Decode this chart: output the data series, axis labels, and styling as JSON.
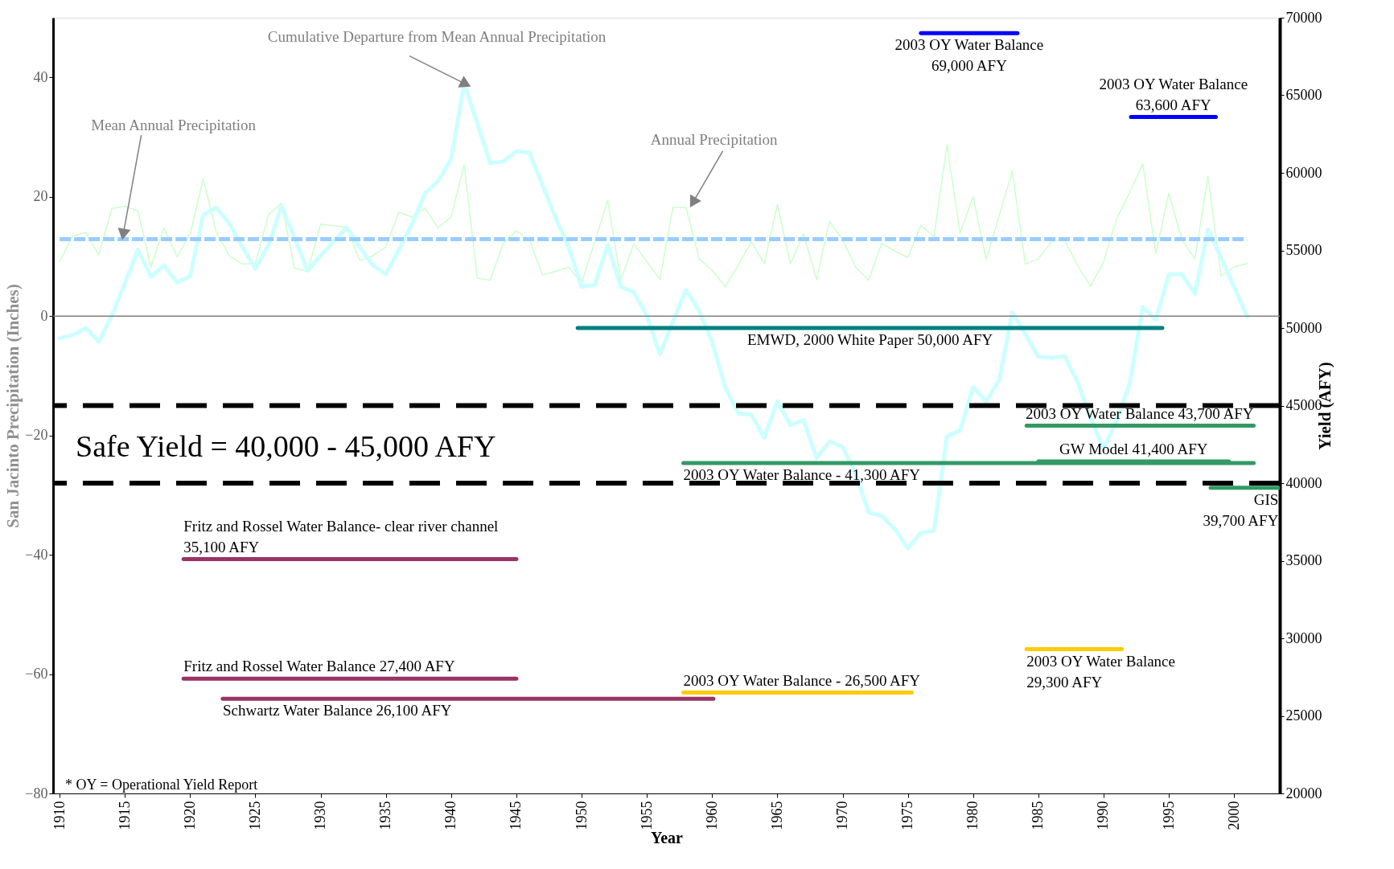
{
  "chart_data": {
    "type": "line",
    "xlabel": "Year",
    "ylabel": "San Jacinto Precipitation (Inches)",
    "y2label": "Yield (AFY)",
    "xlim": [
      1909.5,
      2003.5
    ],
    "xticks": [
      1910,
      1915,
      1920,
      1925,
      1930,
      1935,
      1940,
      1945,
      1950,
      1955,
      1960,
      1965,
      1970,
      1975,
      1980,
      1985,
      1990,
      1995,
      2000
    ],
    "ylim": [
      -80,
      50
    ],
    "yticks": [
      -80,
      -60,
      -40,
      -20,
      0,
      20,
      40
    ],
    "y2lim": [
      20000,
      70000
    ],
    "y2ticks": [
      20000,
      25000,
      30000,
      35000,
      40000,
      45000,
      50000,
      55000,
      60000,
      65000,
      70000
    ],
    "grid": false,
    "x": [
      1910,
      1911,
      1912,
      1913,
      1914,
      1915,
      1916,
      1917,
      1918,
      1919,
      1920,
      1921,
      1922,
      1923,
      1924,
      1925,
      1926,
      1927,
      1928,
      1929,
      1930,
      1931,
      1932,
      1933,
      1934,
      1935,
      1936,
      1937,
      1938,
      1939,
      1940,
      1941,
      1942,
      1943,
      1944,
      1945,
      1946,
      1947,
      1948,
      1949,
      1950,
      1951,
      1952,
      1953,
      1954,
      1955,
      1956,
      1957,
      1958,
      1959,
      1960,
      1961,
      1962,
      1963,
      1964,
      1965,
      1966,
      1967,
      1968,
      1969,
      1970,
      1971,
      1972,
      1973,
      1974,
      1975,
      1976,
      1977,
      1978,
      1979,
      1980,
      1981,
      1982,
      1983,
      1984,
      1985,
      1986,
      1987,
      1988,
      1989,
      1990,
      1991,
      1992,
      1993,
      1994,
      1995,
      1996,
      1997,
      1998,
      1999,
      2000,
      2001
    ],
    "series": [
      {
        "color": "#ccffcc",
        "values": [
          9.1,
          13.4,
          14.0,
          10.2,
          18.0,
          18.4,
          17.6,
          8.2,
          14.8,
          9.9,
          13.7,
          23.0,
          14.1,
          10.1,
          8.7,
          8.8,
          17.0,
          18.9,
          8.0,
          7.5,
          15.4,
          15.1,
          14.9,
          9.3,
          10.1,
          11.6,
          17.4,
          16.6,
          18.1,
          14.8,
          16.6,
          25.4,
          6.4,
          6.0,
          12.2,
          14.3,
          12.8,
          6.9,
          7.5,
          8.2,
          5.5,
          12.4,
          19.4,
          6.0,
          12.1,
          9.1,
          6.1,
          18.2,
          18.2,
          9.6,
          7.7,
          4.9,
          8.5,
          12.5,
          8.8,
          18.7,
          8.7,
          13.8,
          6.1,
          15.9,
          12.8,
          8.2,
          6.0,
          12.2,
          10.9,
          9.8,
          15.2,
          13.3,
          28.7,
          13.9,
          20.0,
          9.5,
          16.8,
          24.3,
          8.7,
          9.6,
          12.5,
          12.8,
          8.5,
          5.0,
          9.1,
          16.3,
          20.7,
          25.5,
          10.5,
          20.6,
          12.8,
          9.6,
          23.5,
          6.7,
          8.2,
          8.8
        ]
      },
      {
        "color": "#ccffff",
        "values": [
          -3.7,
          -3.2,
          -2.0,
          -4.3,
          0.1,
          5.5,
          11.1,
          6.6,
          8.5,
          5.6,
          6.7,
          16.9,
          18.2,
          15.5,
          11.6,
          7.9,
          11.9,
          18.4,
          13.1,
          7.6,
          10.1,
          12.5,
          14.8,
          11.6,
          8.5,
          7.0,
          11.1,
          15.4,
          20.6,
          22.6,
          26.3,
          39.0,
          32.3,
          25.6,
          25.9,
          27.6,
          27.4,
          21.9,
          16.5,
          11.6,
          4.9,
          5.2,
          11.9,
          4.9,
          4.0,
          0.0,
          -6.4,
          -0.9,
          4.4,
          0.9,
          -4.3,
          -11.9,
          -16.3,
          -16.5,
          -20.4,
          -14.3,
          -18.3,
          -17.4,
          -23.8,
          -21.0,
          -21.9,
          -26.5,
          -32.9,
          -33.5,
          -35.7,
          -38.9,
          -36.3,
          -36.0,
          -20.1,
          -19.2,
          -11.9,
          -14.3,
          -10.7,
          0.6,
          -3.0,
          -6.8,
          -7.0,
          -6.7,
          -11.0,
          -17.1,
          -22.3,
          -17.4,
          -11.3,
          1.5,
          -0.6,
          7.0,
          7.0,
          3.7,
          14.5,
          9.8,
          4.9,
          -0.1
        ]
      },
      {
        "color": "#99ccff",
        "line_style": "dashed",
        "x": [
          1910,
          2001
        ],
        "values": [
          12.9,
          12.9
        ]
      },
      {
        "name": "2003 OY Water Balance\n69,000 AFY",
        "axis": "y2",
        "color": "#0000ff",
        "x": [
          1976.0,
          1983.4
        ],
        "values": [
          69000,
          69000
        ]
      },
      {
        "name": "2003 OY Water Balance\n63,600 AFY",
        "axis": "y2",
        "color": "#0000ff",
        "x": [
          1992.1,
          1998.6
        ],
        "values": [
          63600,
          63600
        ]
      },
      {
        "name": "EMWD, 2000 White Paper 50,000 AFY",
        "axis": "y2",
        "color": "#008080",
        "x": [
          1949.7,
          1994.5
        ],
        "values": [
          50000,
          50000
        ]
      },
      {
        "name": "2003 OY Water Balance 43,700 AFY",
        "axis": "y2",
        "color": "#339966",
        "x": [
          1984.1,
          2001.5
        ],
        "values": [
          43700,
          43700
        ]
      },
      {
        "name": "2003 OY Water Balance - 41,300 AFY",
        "axis": "y2",
        "color": "#339966",
        "x": [
          1957.8,
          2001.5
        ],
        "values": [
          41300,
          41300
        ]
      },
      {
        "name": "GW Model 41,400 AFY",
        "axis": "y2",
        "color": "#339966",
        "x": [
          1985.0,
          1999.6
        ],
        "values": [
          41400,
          41400
        ]
      },
      {
        "name": "GIS\n39,700 AFY",
        "axis": "y2",
        "color": "#339966",
        "x": [
          1998.2,
          2003.4
        ],
        "values": [
          39700,
          39700
        ]
      },
      {
        "name": "Fritz and Rossel Water Balance- clear river channel\n35,100 AFY",
        "axis": "y2",
        "color": "#993366",
        "x": [
          1919.5,
          1945.0
        ],
        "values": [
          35100,
          35100
        ]
      },
      {
        "name": "Fritz and Rossel Water Balance 27,400 AFY",
        "axis": "y2",
        "color": "#993366",
        "x": [
          1919.5,
          1945.0
        ],
        "values": [
          27400,
          27400
        ]
      },
      {
        "name": "Schwartz Water Balance 26,100 AFY",
        "axis": "y2",
        "color": "#993366",
        "x": [
          1922.5,
          1960.1
        ],
        "values": [
          26100,
          26100
        ]
      },
      {
        "name": "2003 OY Water Balance - 26,500 AFY",
        "axis": "y2",
        "color": "#ffcc00",
        "x": [
          1957.8,
          1975.3
        ],
        "values": [
          26500,
          26500
        ]
      },
      {
        "name": "2003 OY Water Balance\n29,300 AFY",
        "axis": "y2",
        "color": "#ffcc00",
        "x": [
          1984.1,
          1991.4
        ],
        "values": [
          29300,
          29300
        ]
      }
    ],
    "ref_lines": [
      {
        "axis": "y",
        "value": 0,
        "color": "#808080"
      },
      {
        "axis": "y2",
        "value": 45000,
        "color": "#000000",
        "line_style": "dashed"
      },
      {
        "axis": "y2",
        "value": 40000,
        "color": "#000000",
        "line_style": "dashed"
      }
    ],
    "annotations": [
      {
        "text": "Cumulative Departure from Mean Annual Precipitation",
        "x": 1941,
        "y": 39.0
      },
      {
        "text": "Mean Annual Precipitation",
        "x": 1914.9,
        "y": 14.0
      },
      {
        "text": "Annual Precipitation",
        "x": 1958.6,
        "y": 19.3
      },
      "Safe Yield = 40,000 - 45,000 AFY",
      "* OY = Operational Yield Report"
    ]
  }
}
